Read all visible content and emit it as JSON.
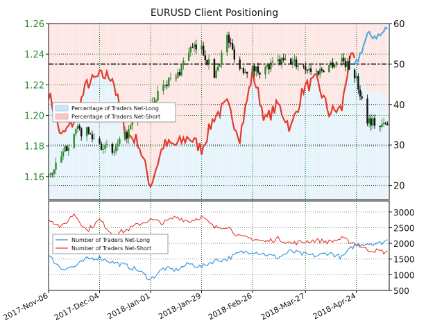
{
  "chart_data": [
    {
      "type": "candlestick+line",
      "title": "EURUSD Client Positioning",
      "x_dates": [
        "2017-11-06",
        "2017-12-04",
        "2018-01-01",
        "2018-01-29",
        "2018-02-26",
        "2018-03-27",
        "2018-04-24"
      ],
      "x_tick_labels": [
        "2017-Nov-06",
        "2017-Dec-04",
        "2018-Jan-01",
        "2018-Jan-29",
        "2018-Feb-26",
        "2018-Mar-27",
        "2018-Apr-24"
      ],
      "x_range": [
        "2017-11-06",
        "2018-05-12"
      ],
      "y_left": {
        "ticks": [
          "1.16",
          "1.18",
          "1.20",
          "1.22",
          "1.24",
          "1.26"
        ],
        "range": [
          1.145,
          1.26
        ],
        "color": "#2a8a2a"
      },
      "y_right": {
        "ticks": [
          "20",
          "30",
          "40",
          "50",
          "60"
        ],
        "range": [
          16.5,
          60
        ]
      },
      "reference_line_right": 50,
      "legend": {
        "placement": "center-left",
        "entries": [
          "Percentage of Traders Net-Long",
          "Percentage of Traders Net-Short"
        ]
      },
      "colors": {
        "net_long": "#5aa7dc",
        "net_short": "#e23a2e",
        "long_fill": "#e6f3fb",
        "short_fill": "#fde6e4",
        "up": "#2e8b2e",
        "down": "#111111"
      },
      "price_close_key": [
        [
          "2017-11-06",
          1.16
        ],
        [
          "2017-11-13",
          1.172
        ],
        [
          "2017-11-20",
          1.19
        ],
        [
          "2017-11-27",
          1.189
        ],
        [
          "2017-12-04",
          1.182
        ],
        [
          "2017-12-11",
          1.175
        ],
        [
          "2017-12-18",
          1.186
        ],
        [
          "2017-12-25",
          1.199
        ],
        [
          "2018-01-01",
          1.205
        ],
        [
          "2018-01-08",
          1.222
        ],
        [
          "2018-01-15",
          1.224
        ],
        [
          "2018-01-22",
          1.243
        ],
        [
          "2018-01-29",
          1.244
        ],
        [
          "2018-02-05",
          1.226
        ],
        [
          "2018-02-12",
          1.251
        ],
        [
          "2018-02-19",
          1.231
        ],
        [
          "2018-02-26",
          1.23
        ],
        [
          "2018-03-05",
          1.23
        ],
        [
          "2018-03-12",
          1.235
        ],
        [
          "2018-03-19",
          1.235
        ],
        [
          "2018-03-26",
          1.232
        ],
        [
          "2018-04-02",
          1.228
        ],
        [
          "2018-04-09",
          1.233
        ],
        [
          "2018-04-16",
          1.237
        ],
        [
          "2018-04-23",
          1.227
        ],
        [
          "2018-04-30",
          1.198
        ],
        [
          "2018-05-07",
          1.193
        ],
        [
          "2018-05-11",
          1.194
        ]
      ],
      "net_short_pct_key": [
        [
          "2017-11-06",
          43
        ],
        [
          "2017-11-13",
          32
        ],
        [
          "2017-11-20",
          36
        ],
        [
          "2017-11-27",
          45
        ],
        [
          "2017-12-04",
          47
        ],
        [
          "2017-12-11",
          47
        ],
        [
          "2017-12-18",
          33
        ],
        [
          "2017-12-25",
          31
        ],
        [
          "2018-01-01",
          20
        ],
        [
          "2018-01-08",
          30
        ],
        [
          "2018-01-15",
          30
        ],
        [
          "2018-01-22",
          32
        ],
        [
          "2018-01-29",
          29
        ],
        [
          "2018-02-05",
          37
        ],
        [
          "2018-02-12",
          40
        ],
        [
          "2018-02-19",
          32
        ],
        [
          "2018-02-26",
          48
        ],
        [
          "2018-03-05",
          36
        ],
        [
          "2018-03-12",
          40
        ],
        [
          "2018-03-19",
          34
        ],
        [
          "2018-03-26",
          44
        ],
        [
          "2018-04-02",
          46
        ],
        [
          "2018-04-09",
          38
        ],
        [
          "2018-04-16",
          39
        ],
        [
          "2018-04-20",
          51
        ],
        [
          "2018-04-23",
          51
        ]
      ],
      "net_long_pct_key": [
        [
          "2018-04-23",
          49
        ],
        [
          "2018-04-30",
          57
        ],
        [
          "2018-05-07",
          57
        ],
        [
          "2018-05-11",
          59
        ]
      ]
    },
    {
      "type": "line",
      "x_range": [
        "2017-11-06",
        "2018-05-12"
      ],
      "y_ticks": [
        "500",
        "1000",
        "1500",
        "2000",
        "2500",
        "3000"
      ],
      "ylim": [
        500,
        3350
      ],
      "legend": {
        "placement": "center-left",
        "entries": [
          "Number of Traders Net-Long",
          "Number of Traders Net-Short"
        ]
      },
      "series": [
        {
          "name": "Number of Traders Net-Long",
          "color": "#2e8fe0",
          "key": [
            [
              "2017-11-06",
              1600
            ],
            [
              "2017-11-13",
              1200
            ],
            [
              "2017-11-20",
              1250
            ],
            [
              "2017-11-27",
              1500
            ],
            [
              "2017-12-04",
              1550
            ],
            [
              "2017-12-11",
              1400
            ],
            [
              "2017-12-18",
              1300
            ],
            [
              "2017-12-25",
              1150
            ],
            [
              "2018-01-01",
              850
            ],
            [
              "2018-01-08",
              1200
            ],
            [
              "2018-01-15",
              1150
            ],
            [
              "2018-01-22",
              1350
            ],
            [
              "2018-01-29",
              1250
            ],
            [
              "2018-02-05",
              1450
            ],
            [
              "2018-02-12",
              1500
            ],
            [
              "2018-02-19",
              1700
            ],
            [
              "2018-02-26",
              1750
            ],
            [
              "2018-03-05",
              1650
            ],
            [
              "2018-03-12",
              1550
            ],
            [
              "2018-03-19",
              1750
            ],
            [
              "2018-03-26",
              1650
            ],
            [
              "2018-04-02",
              1600
            ],
            [
              "2018-04-09",
              1700
            ],
            [
              "2018-04-16",
              1550
            ],
            [
              "2018-04-23",
              1950
            ],
            [
              "2018-04-30",
              2000
            ],
            [
              "2018-05-07",
              2000
            ],
            [
              "2018-05-11",
              2100
            ]
          ]
        },
        {
          "name": "Number of Traders Net-Short",
          "color": "#e23a2e",
          "key": [
            [
              "2017-11-06",
              2800
            ],
            [
              "2017-11-13",
              2500
            ],
            [
              "2017-11-20",
              2950
            ],
            [
              "2017-11-27",
              2400
            ],
            [
              "2017-12-04",
              2750
            ],
            [
              "2017-12-11",
              2300
            ],
            [
              "2017-12-18",
              2400
            ],
            [
              "2017-12-25",
              2600
            ],
            [
              "2018-01-01",
              2750
            ],
            [
              "2018-01-08",
              2650
            ],
            [
              "2018-01-15",
              2850
            ],
            [
              "2018-01-22",
              2700
            ],
            [
              "2018-01-29",
              2850
            ],
            [
              "2018-02-05",
              2500
            ],
            [
              "2018-02-12",
              2550
            ],
            [
              "2018-02-19",
              2200
            ],
            [
              "2018-02-26",
              2150
            ],
            [
              "2018-03-05",
              2050
            ],
            [
              "2018-03-12",
              2150
            ],
            [
              "2018-03-19",
              2000
            ],
            [
              "2018-03-26",
              2050
            ],
            [
              "2018-04-02",
              2100
            ],
            [
              "2018-04-09",
              2050
            ],
            [
              "2018-04-16",
              2150
            ],
            [
              "2018-04-23",
              2000
            ],
            [
              "2018-04-30",
              1800
            ],
            [
              "2018-05-07",
              1750
            ],
            [
              "2018-05-11",
              1700
            ]
          ]
        }
      ]
    }
  ]
}
